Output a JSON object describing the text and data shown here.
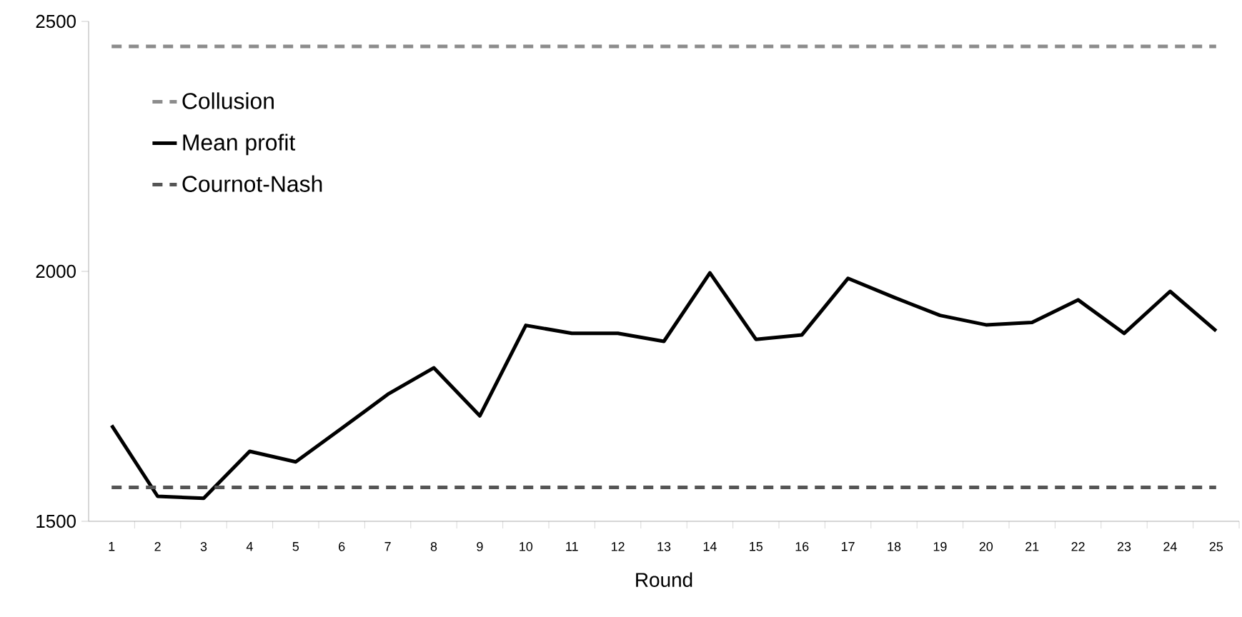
{
  "chart_data": {
    "type": "line",
    "xlabel": "Round",
    "categories": [
      "1",
      "2",
      "3",
      "4",
      "5",
      "6",
      "7",
      "8",
      "9",
      "10",
      "11",
      "12",
      "13",
      "14",
      "15",
      "16",
      "17",
      "18",
      "19",
      "20",
      "21",
      "22",
      "23",
      "24",
      "25"
    ],
    "ylim": [
      1500,
      2500
    ],
    "yticks": [
      1500,
      2000,
      2500
    ],
    "grid": false,
    "legend": "top left",
    "series": [
      {
        "name": "Collusion",
        "color": "#8c8c8c",
        "line_style": "dashed",
        "values": [
          2450,
          2450,
          2450,
          2450,
          2450,
          2450,
          2450,
          2450,
          2450,
          2450,
          2450,
          2450,
          2450,
          2450,
          2450,
          2450,
          2450,
          2450,
          2450,
          2450,
          2450,
          2450,
          2450,
          2450,
          2450
        ]
      },
      {
        "name": "Mean profit",
        "color": "#000000",
        "line_style": "solid",
        "values": [
          1692,
          1550,
          1546,
          1640,
          1619,
          1686,
          1754,
          1807,
          1711,
          1892,
          1876,
          1876,
          1860,
          1997,
          1864,
          1873,
          1986,
          1948,
          1912,
          1893,
          1898,
          1943,
          1876,
          1960,
          1881
        ]
      },
      {
        "name": "Cournot-Nash",
        "color": "#555555",
        "line_style": "dashed",
        "values": [
          1568,
          1568,
          1568,
          1568,
          1568,
          1568,
          1568,
          1568,
          1568,
          1568,
          1568,
          1568,
          1568,
          1568,
          1568,
          1568,
          1568,
          1568,
          1568,
          1568,
          1568,
          1568,
          1568,
          1568,
          1568
        ]
      }
    ]
  }
}
